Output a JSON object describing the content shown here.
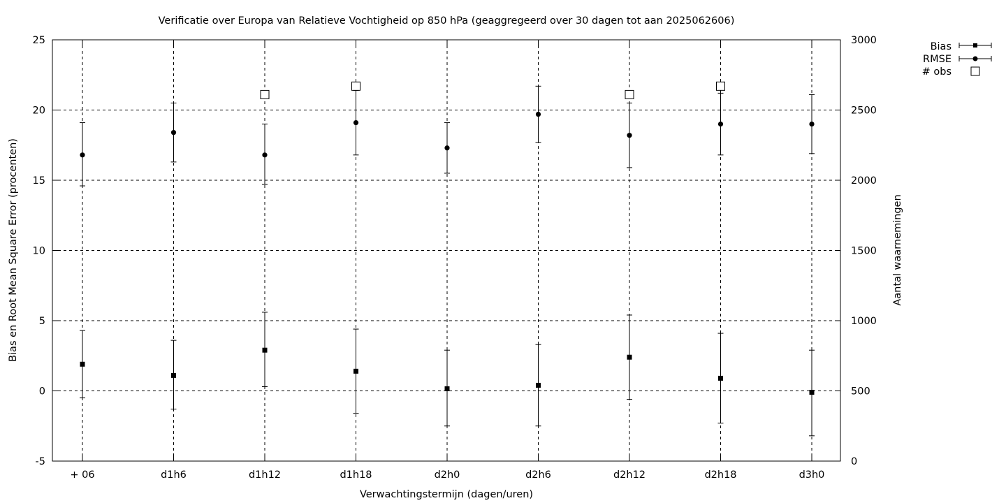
{
  "chart_data": {
    "type": "scatter",
    "title": "Verificatie over Europa van Relatieve Vochtigheid op 850 hPa (geaggregeerd over 30 dagen tot aan 2025062606)",
    "xlabel": "Verwachtingstermijn (dagen/uren)",
    "ylabel": "Bias en Root Mean Square Error (procenten)",
    "y2label": "Aantal waarnemingen",
    "categories": [
      "+ 06",
      "d1h6",
      "d1h12",
      "d1h18",
      "d2h0",
      "d2h6",
      "d2h12",
      "d2h18",
      "d3h0"
    ],
    "ylim": [
      -5,
      25
    ],
    "yticks": [
      "-5",
      "0",
      "5",
      "10",
      "15",
      "20",
      "25"
    ],
    "y2lim": [
      0,
      3000
    ],
    "y2ticks": [
      "0",
      "500",
      "1000",
      "1500",
      "2000",
      "2500",
      "3000"
    ],
    "grid": true,
    "legend_position": "top-right, outside plot",
    "series": [
      {
        "name": "Bias",
        "marker": "filled-square",
        "axis": "left",
        "values": [
          1.9,
          1.1,
          2.9,
          1.4,
          0.15,
          0.4,
          2.4,
          0.9,
          -0.1
        ],
        "err_low": [
          -0.5,
          -1.3,
          0.3,
          -1.6,
          -2.5,
          -2.5,
          -0.6,
          -2.3,
          -3.2
        ],
        "err_high": [
          4.3,
          3.6,
          5.6,
          4.4,
          2.9,
          3.3,
          5.4,
          4.1,
          2.9
        ]
      },
      {
        "name": "RMSE",
        "marker": "filled-circle",
        "axis": "left",
        "values": [
          16.8,
          18.4,
          16.8,
          19.1,
          17.3,
          19.7,
          18.2,
          19.0,
          19.0
        ],
        "err_low": [
          14.6,
          16.3,
          14.7,
          16.8,
          15.5,
          17.7,
          15.9,
          16.8,
          16.9
        ],
        "err_high": [
          19.1,
          20.5,
          19.0,
          21.4,
          19.1,
          21.7,
          20.5,
          21.2,
          21.1
        ]
      },
      {
        "name": "# obs",
        "marker": "open-square",
        "axis": "right",
        "points": [
          {
            "x": "d1h12",
            "value": 2610
          },
          {
            "x": "d1h18",
            "value": 2670
          },
          {
            "x": "d2h12",
            "value": 2610
          },
          {
            "x": "d2h18",
            "value": 2670
          }
        ]
      }
    ]
  }
}
